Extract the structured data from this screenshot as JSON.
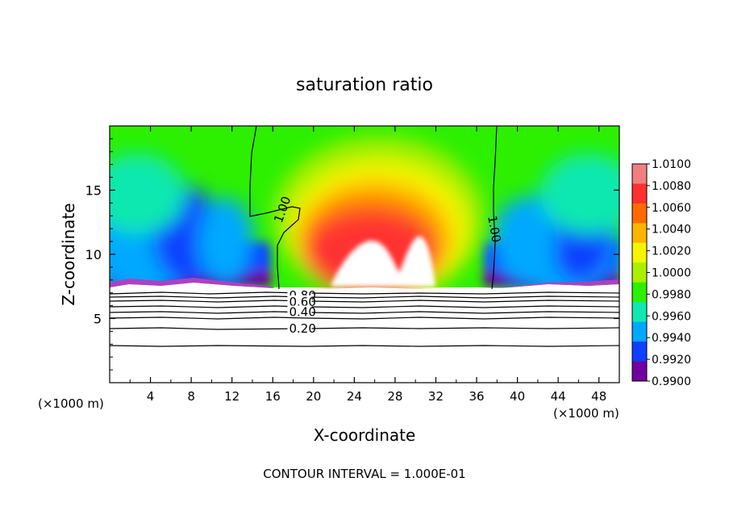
{
  "chart_data": {
    "type": "heatmap",
    "title": "saturation ratio",
    "xlabel": "X-coordinate",
    "ylabel": "Z-coordinate",
    "x_unit_label_left": "(×1000 m)",
    "x_unit_label_right": "(×1000 m)",
    "footer": "CONTOUR INTERVAL = 1.000E-01",
    "xlim": [
      0,
      50
    ],
    "ylim": [
      0,
      20
    ],
    "x_ticks": [
      "4",
      "8",
      "12",
      "16",
      "20",
      "24",
      "28",
      "32",
      "36",
      "40",
      "44",
      "48"
    ],
    "y_ticks": [
      "5",
      "10",
      "15"
    ],
    "colorbar": {
      "levels": [
        "1.0100",
        "1.0080",
        "1.0060",
        "1.0040",
        "1.0020",
        "1.0000",
        "0.9980",
        "0.9960",
        "0.9940",
        "0.9920",
        "0.9900"
      ],
      "colors": [
        "#f08080",
        "#ff3030",
        "#ff6a00",
        "#ffb400",
        "#f5f500",
        "#a8f000",
        "#2cf000",
        "#10e8b0",
        "#00a8ff",
        "#1040ff",
        "#7000a0"
      ]
    },
    "contour_labels": [
      {
        "text": "1.00",
        "x": 16.5,
        "z": 12.5,
        "rotate": -70
      },
      {
        "text": "1.00",
        "x": 37.5,
        "z": 13.0,
        "rotate": 80
      },
      {
        "text": "0.80",
        "x": 17.6,
        "z": 6.8,
        "rotate": 0
      },
      {
        "text": "0.60",
        "x": 17.6,
        "z": 6.3,
        "rotate": 0
      },
      {
        "text": "0.40",
        "x": 17.6,
        "z": 5.5,
        "rotate": 0
      },
      {
        "text": "0.20",
        "x": 17.6,
        "z": 4.2,
        "rotate": 0
      }
    ]
  }
}
